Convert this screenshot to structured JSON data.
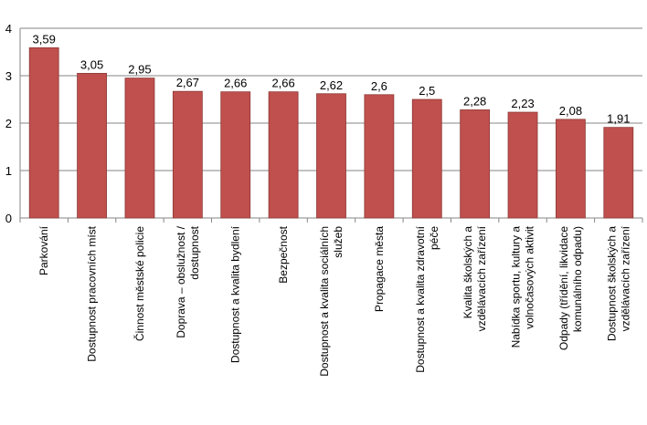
{
  "chart_data": {
    "type": "bar",
    "title": "",
    "xlabel": "",
    "ylabel": "",
    "ylim": [
      0,
      4
    ],
    "yticks": [
      0,
      1,
      2,
      3,
      4
    ],
    "grid": true,
    "legend": "none",
    "colors": {
      "bar": "#c0504d",
      "bar_edge": "#8c3836",
      "grid": "#868686",
      "axis": "#868686"
    },
    "categories": [
      "Parkování",
      "Dostupnost pracovních míst",
      "Činnost městské policie",
      "Doprava – obslužnost / dostupnost",
      "Dostupnost a kvalita bydlení",
      "Bezpečnost",
      "Dostupnost a kvalita sociálních služeb",
      "Propagace města",
      "Dostupnost a kvalita zdravotní péče",
      "Kvalita školských a vzdělávacích zařízení",
      "Nabídka sportu, kultury a volnočasových aktivit",
      "Odpady (třídění, likvidace komunálního odpadu)",
      "Dostupnost školských a vzdělávacích zařízení"
    ],
    "category_lines": [
      [
        "Parkování"
      ],
      [
        "Dostupnost pracovních míst"
      ],
      [
        "Činnost městské policie"
      ],
      [
        "Doprava – obslužnost /",
        "dostupnost"
      ],
      [
        "Dostupnost a kvalita bydlení"
      ],
      [
        "Bezpečnost"
      ],
      [
        "Dostupnost a kvalita sociálních",
        "služeb"
      ],
      [
        "Propagace města"
      ],
      [
        "Dostupnost a kvalita zdravotní",
        "péče"
      ],
      [
        "Kvalita školských a",
        "vzdělávacích zařízení"
      ],
      [
        "Nabídka sportu, kultury a",
        "volnočasových aktivit"
      ],
      [
        "Odpady (třídění, likvidace",
        "komunálního odpadu)"
      ],
      [
        "Dostupnost školských a",
        "vzdělávacích zařízení"
      ]
    ],
    "values": [
      3.59,
      3.05,
      2.95,
      2.67,
      2.66,
      2.66,
      2.62,
      2.6,
      2.5,
      2.28,
      2.23,
      2.08,
      1.91
    ],
    "value_labels": [
      "3,59",
      "3,05",
      "2,95",
      "2,67",
      "2,66",
      "2,66",
      "2,62",
      "2,6",
      "2,5",
      "2,28",
      "2,23",
      "2,08",
      "1,91"
    ]
  }
}
